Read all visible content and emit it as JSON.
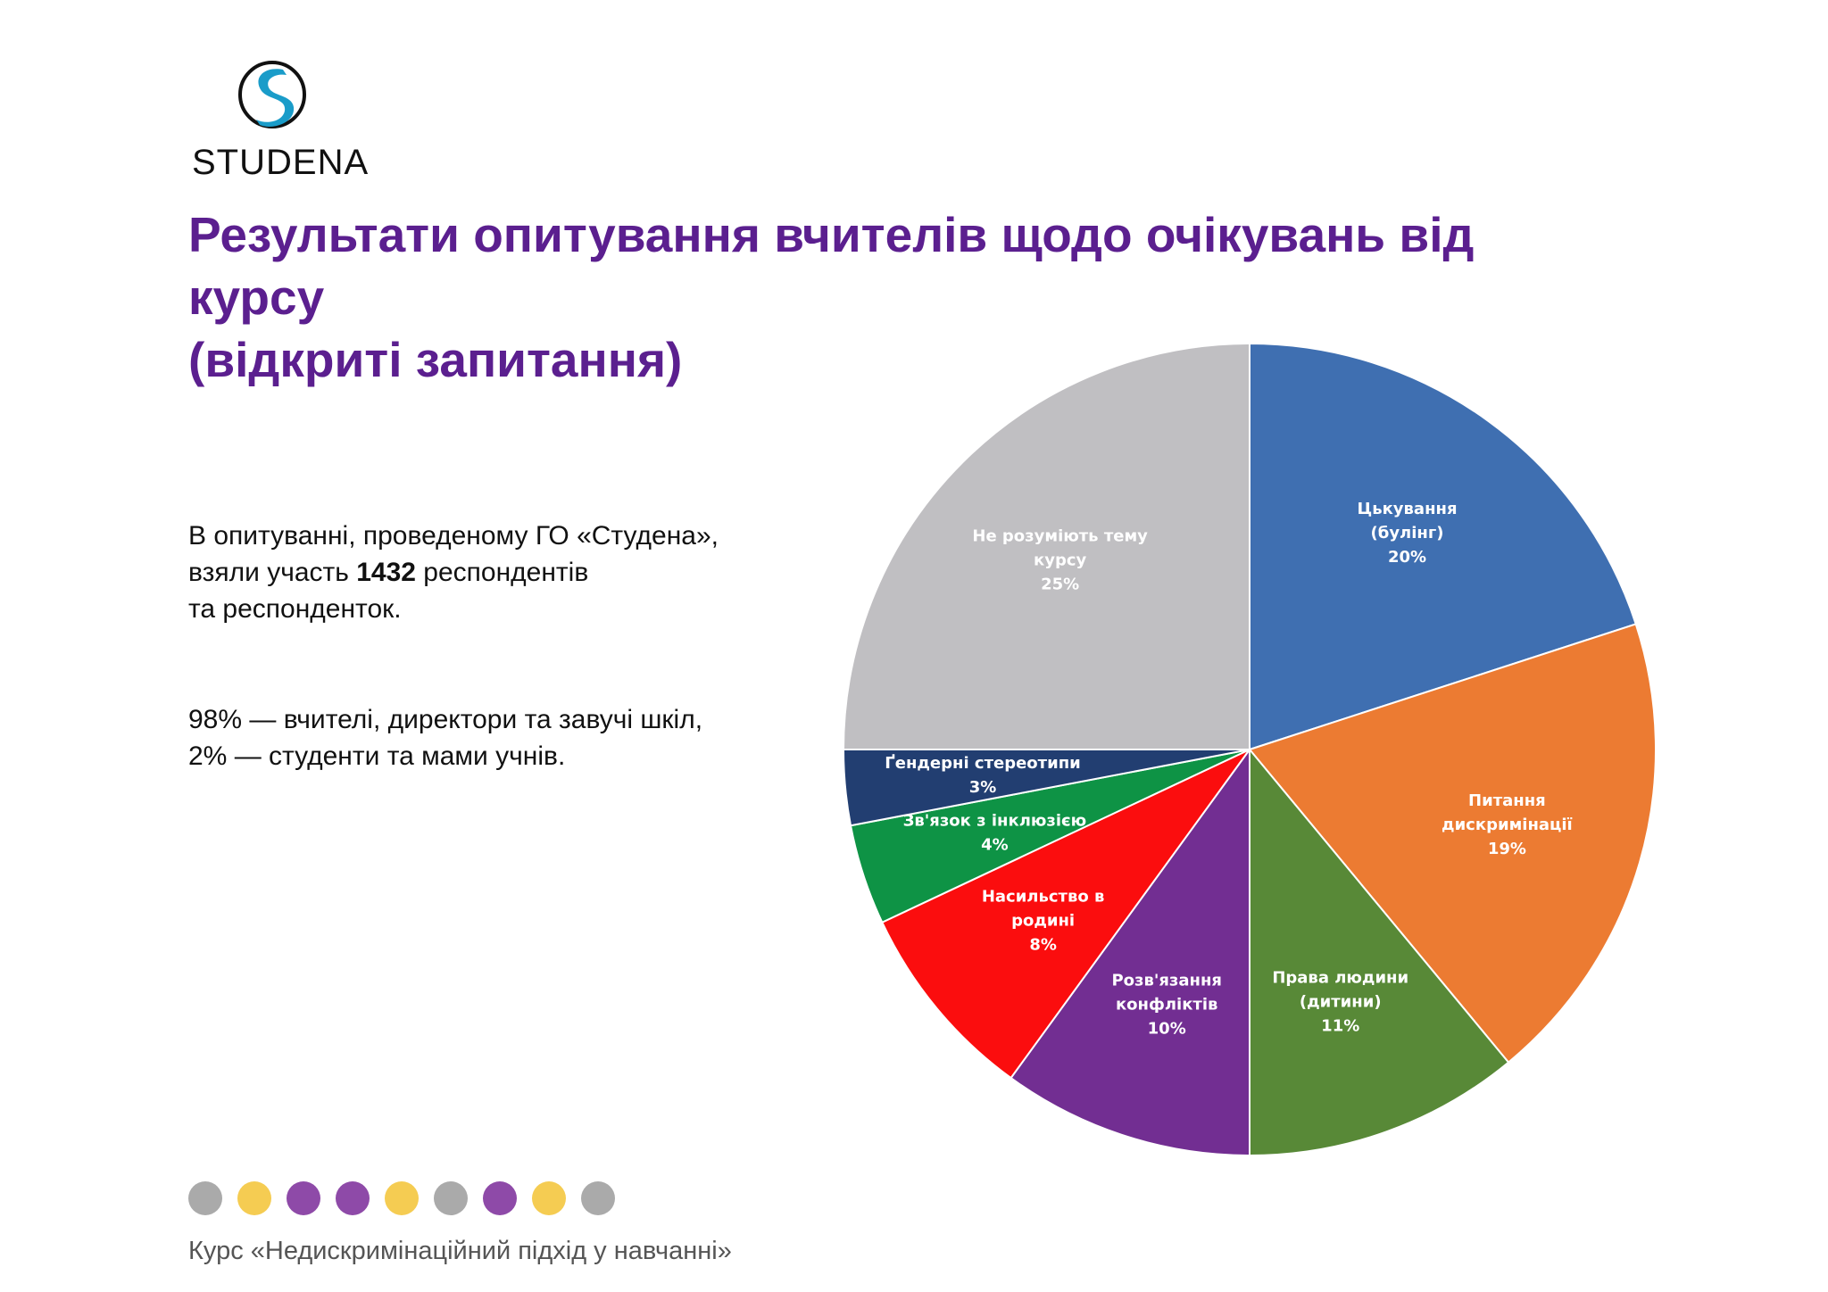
{
  "brand": {
    "name": "STUDENA",
    "mark_color": "#1a9cc9",
    "ring_color": "#111111"
  },
  "title": {
    "line1": "Результати опитування вчителів щодо очікувань від курсу",
    "line2": "(відкриті запитання)",
    "color": "#5b1f8f"
  },
  "intro": {
    "p1_before": "В опитуванні, проведеному ГО «Студена»,",
    "p1_line2_before": "взяли участь ",
    "p1_count": "1432",
    "p1_line2_after": " респондентів",
    "p1_line3": "та респонденток.",
    "p2_line1": "98% — вчителі, директори та завучі шкіл,",
    "p2_line2": "2%  — студенти та мами учнів."
  },
  "chart_data": {
    "type": "pie",
    "title": "",
    "start_angle_deg": 0,
    "direction": "clockwise",
    "slices": [
      {
        "label": [
          "Цькування",
          "(булінг)"
        ],
        "value": 20,
        "pct_label": "20%",
        "color": "#3f6fb1"
      },
      {
        "label": [
          "Питання",
          "дискримінації"
        ],
        "value": 19,
        "pct_label": "19%",
        "color": "#ec7b32"
      },
      {
        "label": [
          "Права людини",
          "(дитини)"
        ],
        "value": 11,
        "pct_label": "11%",
        "color": "#588937"
      },
      {
        "label": [
          "Розв'язання",
          "конфліктів"
        ],
        "value": 10,
        "pct_label": "10%",
        "color": "#722e92"
      },
      {
        "label": [
          "Насильство в",
          "родині"
        ],
        "value": 8,
        "pct_label": "8%",
        "color": "#fb0d0e"
      },
      {
        "label": [
          "Зв'язок з інклюзією"
        ],
        "value": 4,
        "pct_label": "4%",
        "color": "#0e9345"
      },
      {
        "label": [
          "Ґендерні стереотипи"
        ],
        "value": 3,
        "pct_label": "3%",
        "color": "#223e71"
      },
      {
        "label": [
          "Не розуміють тему",
          "курсу"
        ],
        "value": 25,
        "pct_label": "25%",
        "color": "#c0bfc2"
      }
    ]
  },
  "dots": {
    "colors": [
      "#aaaaaa",
      "#f5cc52",
      "#8e4aa8",
      "#8e4aa8",
      "#f5cc52",
      "#aaaaaa",
      "#8e4aa8",
      "#f5cc52",
      "#aaaaaa"
    ]
  },
  "footer": {
    "text": "Курс «Недискримінаційний підхід у навчанні»"
  }
}
